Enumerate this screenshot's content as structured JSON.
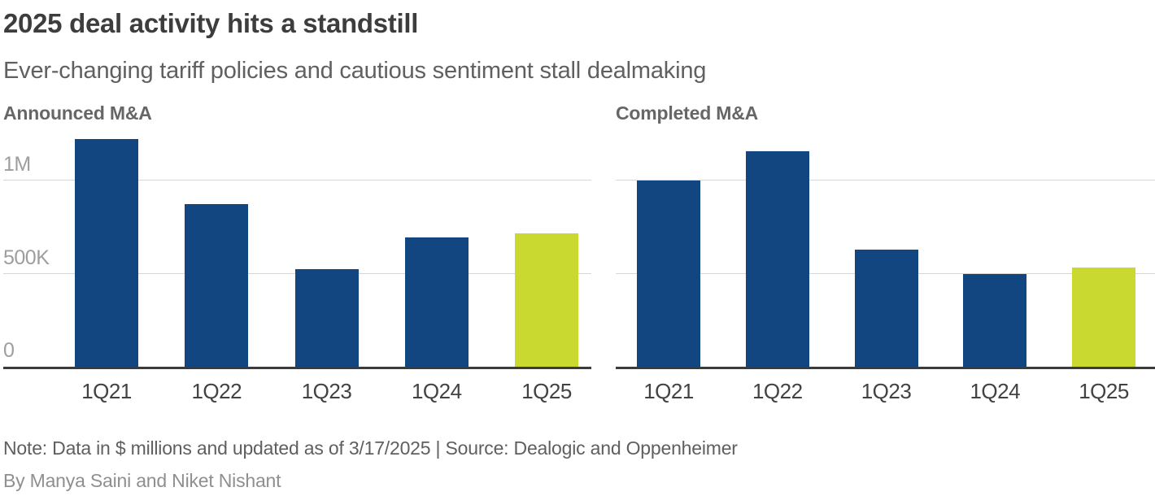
{
  "header": {
    "title": "2025 deal activity hits a standstill",
    "subtitle": "Ever-changing tariff policies and cautious sentiment stall dealmaking"
  },
  "y_axis": {
    "labels": [
      "1M",
      "500K",
      "0"
    ]
  },
  "colors": {
    "bar_blue": "#114680",
    "bar_highlight": "#c9d930",
    "gridline": "#d7d7d7",
    "axis_line": "#3b3b3b"
  },
  "chart_data": [
    {
      "type": "bar",
      "title": "Announced M&A",
      "categories": [
        "1Q21",
        "1Q22",
        "1Q23",
        "1Q24",
        "1Q25"
      ],
      "values": [
        1225000,
        875000,
        525000,
        695000,
        715000
      ],
      "unit": "$ millions",
      "ylabel": "",
      "xlabel": "",
      "yticks": [
        0,
        500000,
        1000000
      ],
      "ytick_labels": [
        "0",
        "500K",
        "1M"
      ],
      "ylim": [
        0,
        1270000
      ],
      "grid": "horizontal",
      "highlight_last": true,
      "legend_position": "none"
    },
    {
      "type": "bar",
      "title": "Completed M&A",
      "categories": [
        "1Q21",
        "1Q22",
        "1Q23",
        "1Q24",
        "1Q25"
      ],
      "values": [
        1000000,
        1160000,
        630000,
        500000,
        535000
      ],
      "unit": "$ millions",
      "ylabel": "",
      "xlabel": "",
      "yticks": [
        0,
        500000,
        1000000
      ],
      "ytick_labels": [
        "0",
        "500K",
        "1M"
      ],
      "ylim": [
        0,
        1270000
      ],
      "grid": "horizontal",
      "highlight_last": true,
      "legend_position": "none"
    }
  ],
  "footer": {
    "note": "Note: Data in $ millions and updated as of 3/17/2025 | Source: Dealogic and Oppenheimer",
    "byline": "By Manya Saini and Niket Nishant"
  }
}
